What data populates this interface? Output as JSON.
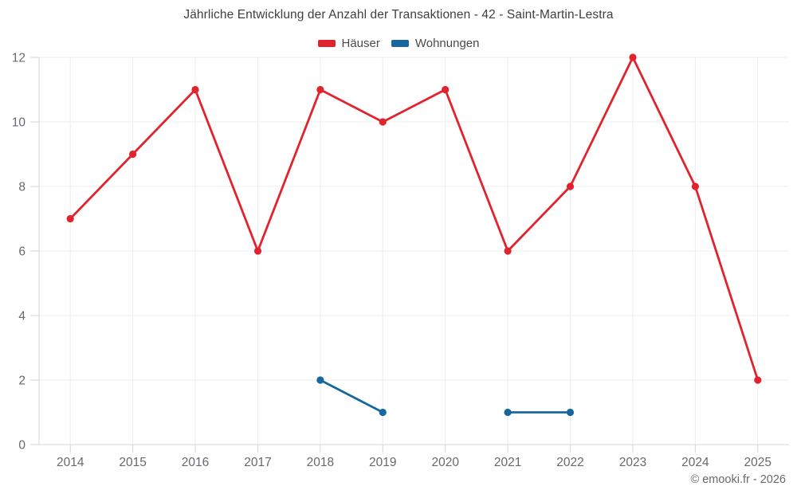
{
  "title": "Jährliche Entwicklung der Anzahl der Transaktionen - 42 - Saint-Martin-Lestra",
  "footer": "© emooki.fr - 2026",
  "colors": {
    "haeuser": "#e1232d",
    "wohnungen": "#17679e",
    "grid": "#ededed",
    "axis_border": "#d6d6d6",
    "tick_text": "#66696e"
  },
  "chart_data": {
    "type": "line",
    "title": "Jährliche Entwicklung der Anzahl der Transaktionen - 42 - Saint-Martin-Lestra",
    "categories": [
      "2014",
      "2015",
      "2016",
      "2017",
      "2018",
      "2019",
      "2020",
      "2021",
      "2022",
      "2023",
      "2024",
      "2025"
    ],
    "series": [
      {
        "name": "Häuser",
        "color": "#e1232d",
        "values": [
          7,
          9,
          11,
          6,
          11,
          10,
          11,
          6,
          8,
          12,
          8,
          2
        ]
      },
      {
        "name": "Wohnungen",
        "color": "#17679e",
        "values": [
          null,
          null,
          null,
          null,
          2,
          1,
          null,
          1,
          1,
          null,
          null,
          null
        ]
      }
    ],
    "xlabel": "",
    "ylabel": "",
    "ylim": [
      0,
      12
    ],
    "yticks": [
      0,
      2,
      4,
      6,
      8,
      10,
      12
    ],
    "grid": true,
    "legend_position": "top"
  }
}
